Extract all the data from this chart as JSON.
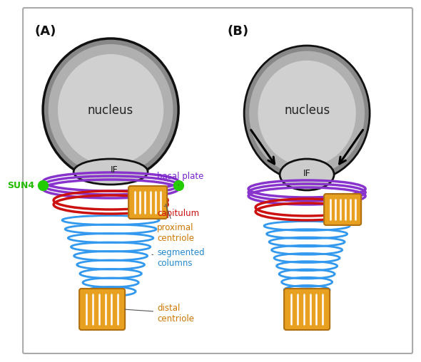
{
  "bg_color": "#ffffff",
  "border_color": "#aaaaaa",
  "nucleus_fill_outer": "#aaaaaa",
  "nucleus_fill_inner": "#dddddd",
  "nucleus_edge": "#111111",
  "if_fill": "#dddddd",
  "basal_plate_color": "#8833cc",
  "capitulum_color": "#cc1111",
  "centriole_fill": "#e8a020",
  "centriole_edge": "#b07010",
  "centriole_stripe": "#ffffff",
  "segmented_color": "#3399ee",
  "green_dot": "#22cc00",
  "text_green": "#22bb00",
  "text_purple": "#7722cc",
  "text_red": "#cc1111",
  "text_orange": "#cc7700",
  "text_blue": "#2288cc",
  "text_black": "#111111",
  "arrow_color": "#111111",
  "label_A": "(A)",
  "label_B": "(B)",
  "label_nucleus": "nucleus",
  "label_IF": "IF",
  "label_SUN4": "SUN4",
  "label_basal": "basal plate",
  "label_cap": "capitulum",
  "label_prox": "proximal\ncentriole",
  "label_seg": "segmented\ncolumns",
  "label_dist": "distal\ncentriole"
}
